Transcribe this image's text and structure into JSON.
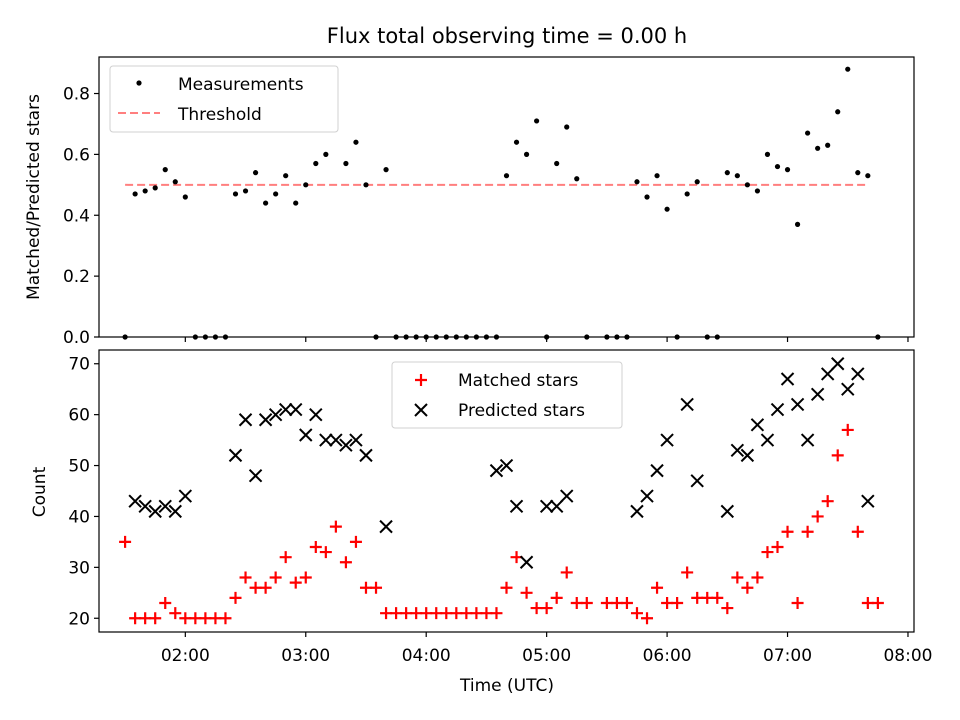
{
  "chart_data": [
    {
      "type": "scatter",
      "title": "Flux total observing time = 0.00 h",
      "ylabel": "Matched/Predicted stars",
      "xlabel": "",
      "ylim": [
        0,
        0.92
      ],
      "yticks": [
        0.0,
        0.2,
        0.4,
        0.6,
        0.8
      ],
      "xlim": [
        "01:17",
        "08:03"
      ],
      "grid": false,
      "legend_position": "top-left",
      "threshold_value": 0.5,
      "threshold_x_range": [
        "01:30",
        "07:40"
      ],
      "series": [
        {
          "name": "Measurements",
          "color": "#000000",
          "marker": "dot",
          "points": [
            [
              "01:30",
              0.0
            ],
            [
              "01:35",
              0.47
            ],
            [
              "01:40",
              0.48
            ],
            [
              "01:45",
              0.49
            ],
            [
              "01:50",
              0.55
            ],
            [
              "01:55",
              0.51
            ],
            [
              "02:00",
              0.46
            ],
            [
              "02:05",
              0.0
            ],
            [
              "02:10",
              0.0
            ],
            [
              "02:15",
              0.0
            ],
            [
              "02:20",
              0.0
            ],
            [
              "02:25",
              0.47
            ],
            [
              "02:30",
              0.48
            ],
            [
              "02:35",
              0.54
            ],
            [
              "02:40",
              0.44
            ],
            [
              "02:45",
              0.47
            ],
            [
              "02:50",
              0.53
            ],
            [
              "02:55",
              0.44
            ],
            [
              "03:00",
              0.5
            ],
            [
              "03:05",
              0.57
            ],
            [
              "03:10",
              0.6
            ],
            [
              "03:15",
              0.69
            ],
            [
              "03:20",
              0.57
            ],
            [
              "03:25",
              0.64
            ],
            [
              "03:30",
              0.5
            ],
            [
              "03:35",
              0.0
            ],
            [
              "03:40",
              0.55
            ],
            [
              "03:45",
              0.0
            ],
            [
              "03:50",
              0.0
            ],
            [
              "03:55",
              0.0
            ],
            [
              "04:00",
              0.0
            ],
            [
              "04:05",
              0.0
            ],
            [
              "04:10",
              0.0
            ],
            [
              "04:15",
              0.0
            ],
            [
              "04:20",
              0.0
            ],
            [
              "04:25",
              0.0
            ],
            [
              "04:30",
              0.0
            ],
            [
              "04:35",
              0.0
            ],
            [
              "04:40",
              0.53
            ],
            [
              "04:45",
              0.64
            ],
            [
              "04:50",
              0.6
            ],
            [
              "04:55",
              0.71
            ],
            [
              "05:00",
              0.0
            ],
            [
              "05:05",
              0.57
            ],
            [
              "05:10",
              0.69
            ],
            [
              "05:15",
              0.52
            ],
            [
              "05:20",
              0.0
            ],
            [
              "05:30",
              0.0
            ],
            [
              "05:35",
              0.0
            ],
            [
              "05:40",
              0.0
            ],
            [
              "05:45",
              0.51
            ],
            [
              "05:50",
              0.46
            ],
            [
              "05:55",
              0.53
            ],
            [
              "06:00",
              0.42
            ],
            [
              "06:05",
              0.0
            ],
            [
              "06:10",
              0.47
            ],
            [
              "06:15",
              0.51
            ],
            [
              "06:20",
              0.0
            ],
            [
              "06:25",
              0.0
            ],
            [
              "06:30",
              0.54
            ],
            [
              "06:35",
              0.53
            ],
            [
              "06:40",
              0.5
            ],
            [
              "06:45",
              0.48
            ],
            [
              "06:50",
              0.6
            ],
            [
              "06:55",
              0.56
            ],
            [
              "07:00",
              0.55
            ],
            [
              "07:05",
              0.37
            ],
            [
              "07:10",
              0.67
            ],
            [
              "07:15",
              0.62
            ],
            [
              "07:20",
              0.63
            ],
            [
              "07:25",
              0.74
            ],
            [
              "07:30",
              0.88
            ],
            [
              "07:35",
              0.54
            ],
            [
              "07:40",
              0.53
            ],
            [
              "07:45",
              0.0
            ]
          ]
        },
        {
          "name": "Threshold",
          "color": "#ff7f7f",
          "style": "dashed",
          "values": [
            0.5,
            0.5
          ]
        }
      ]
    },
    {
      "type": "scatter",
      "title": "",
      "ylabel": "Count",
      "xlabel": "Time (UTC)",
      "ylim": [
        17.3,
        72.7
      ],
      "yticks": [
        20,
        30,
        40,
        50,
        60,
        70
      ],
      "xlim": [
        "01:17",
        "08:03"
      ],
      "xticks": [
        "02:00",
        "03:00",
        "04:00",
        "05:00",
        "06:00",
        "07:00",
        "08:00"
      ],
      "grid": false,
      "legend_position": "top-center",
      "series": [
        {
          "name": "Matched stars",
          "color": "#ff0000",
          "marker": "plus",
          "points": [
            [
              "01:30",
              35
            ],
            [
              "01:35",
              20
            ],
            [
              "01:40",
              20
            ],
            [
              "01:45",
              20
            ],
            [
              "01:50",
              23
            ],
            [
              "01:55",
              21
            ],
            [
              "02:00",
              20
            ],
            [
              "02:05",
              20
            ],
            [
              "02:10",
              20
            ],
            [
              "02:15",
              20
            ],
            [
              "02:20",
              20
            ],
            [
              "02:25",
              24
            ],
            [
              "02:30",
              28
            ],
            [
              "02:35",
              26
            ],
            [
              "02:40",
              26
            ],
            [
              "02:45",
              28
            ],
            [
              "02:50",
              32
            ],
            [
              "02:55",
              27
            ],
            [
              "03:00",
              28
            ],
            [
              "03:05",
              34
            ],
            [
              "03:10",
              33
            ],
            [
              "03:15",
              38
            ],
            [
              "03:20",
              31
            ],
            [
              "03:25",
              35
            ],
            [
              "03:30",
              26
            ],
            [
              "03:35",
              26
            ],
            [
              "03:40",
              21
            ],
            [
              "03:45",
              21
            ],
            [
              "03:50",
              21
            ],
            [
              "03:55",
              21
            ],
            [
              "04:00",
              21
            ],
            [
              "04:05",
              21
            ],
            [
              "04:10",
              21
            ],
            [
              "04:15",
              21
            ],
            [
              "04:20",
              21
            ],
            [
              "04:25",
              21
            ],
            [
              "04:30",
              21
            ],
            [
              "04:35",
              21
            ],
            [
              "04:40",
              26
            ],
            [
              "04:45",
              32
            ],
            [
              "04:50",
              25
            ],
            [
              "04:55",
              22
            ],
            [
              "05:00",
              22
            ],
            [
              "05:05",
              24
            ],
            [
              "05:10",
              29
            ],
            [
              "05:15",
              23
            ],
            [
              "05:20",
              23
            ],
            [
              "05:30",
              23
            ],
            [
              "05:35",
              23
            ],
            [
              "05:40",
              23
            ],
            [
              "05:45",
              21
            ],
            [
              "05:50",
              20
            ],
            [
              "05:55",
              26
            ],
            [
              "06:00",
              23
            ],
            [
              "06:05",
              23
            ],
            [
              "06:10",
              29
            ],
            [
              "06:15",
              24
            ],
            [
              "06:20",
              24
            ],
            [
              "06:25",
              24
            ],
            [
              "06:30",
              22
            ],
            [
              "06:35",
              28
            ],
            [
              "06:40",
              26
            ],
            [
              "06:45",
              28
            ],
            [
              "06:50",
              33
            ],
            [
              "06:55",
              34
            ],
            [
              "07:00",
              37
            ],
            [
              "07:05",
              23
            ],
            [
              "07:10",
              37
            ],
            [
              "07:15",
              40
            ],
            [
              "07:20",
              43
            ],
            [
              "07:25",
              52
            ],
            [
              "07:30",
              57
            ],
            [
              "07:35",
              37
            ],
            [
              "07:40",
              23
            ],
            [
              "07:45",
              23
            ]
          ]
        },
        {
          "name": "Predicted stars",
          "color": "#000000",
          "marker": "x",
          "points": [
            [
              "01:35",
              43
            ],
            [
              "01:40",
              42
            ],
            [
              "01:45",
              41
            ],
            [
              "01:50",
              42
            ],
            [
              "01:55",
              41
            ],
            [
              "02:00",
              44
            ],
            [
              "02:25",
              52
            ],
            [
              "02:30",
              59
            ],
            [
              "02:35",
              48
            ],
            [
              "02:40",
              59
            ],
            [
              "02:45",
              60
            ],
            [
              "02:50",
              61
            ],
            [
              "02:55",
              61
            ],
            [
              "03:00",
              56
            ],
            [
              "03:05",
              60
            ],
            [
              "03:10",
              55
            ],
            [
              "03:15",
              55
            ],
            [
              "03:20",
              54
            ],
            [
              "03:25",
              55
            ],
            [
              "03:30",
              52
            ],
            [
              "03:40",
              38
            ],
            [
              "04:35",
              49
            ],
            [
              "04:40",
              50
            ],
            [
              "04:45",
              42
            ],
            [
              "04:50",
              31
            ],
            [
              "05:00",
              42
            ],
            [
              "05:05",
              42
            ],
            [
              "05:10",
              44
            ],
            [
              "05:45",
              41
            ],
            [
              "05:50",
              44
            ],
            [
              "05:55",
              49
            ],
            [
              "06:00",
              55
            ],
            [
              "06:10",
              62
            ],
            [
              "06:15",
              47
            ],
            [
              "06:30",
              41
            ],
            [
              "06:35",
              53
            ],
            [
              "06:40",
              52
            ],
            [
              "06:45",
              58
            ],
            [
              "06:50",
              55
            ],
            [
              "06:55",
              61
            ],
            [
              "07:00",
              67
            ],
            [
              "07:05",
              62
            ],
            [
              "07:10",
              55
            ],
            [
              "07:15",
              64
            ],
            [
              "07:20",
              68
            ],
            [
              "07:25",
              70
            ],
            [
              "07:30",
              65
            ],
            [
              "07:35",
              68
            ],
            [
              "07:40",
              43
            ]
          ]
        }
      ]
    }
  ]
}
